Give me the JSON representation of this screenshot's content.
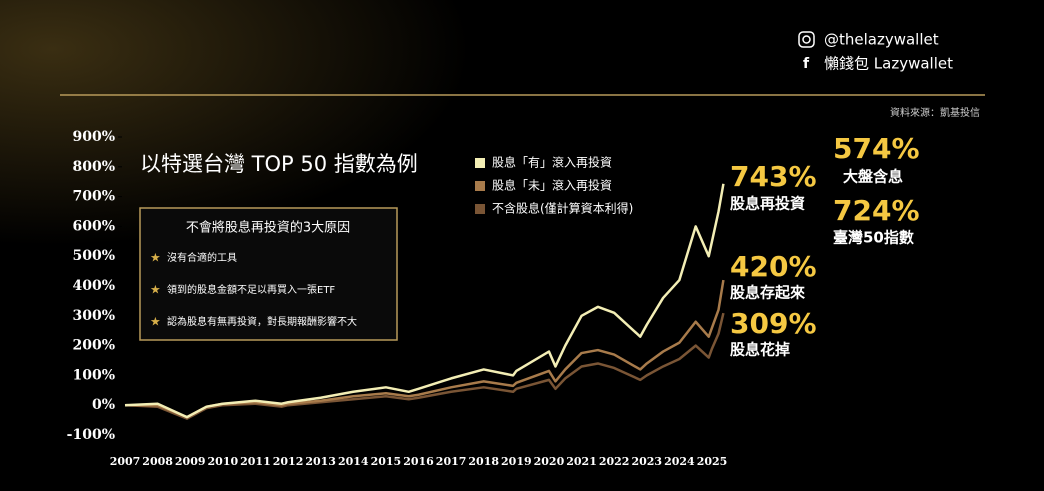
{
  "social": {
    "instagram": "@thelazywallet",
    "facebook": "懶錢包 Lazywallet",
    "source": "資料來源：凱基投信"
  },
  "reasons": {
    "title": "不會將股息再投資的3大原因",
    "items": [
      "沒有合適的工具",
      "領到的股息金額不足以再買入一張ETF",
      "認為股息有無再投資，對長期報酬影響不大"
    ]
  },
  "chart_data": {
    "type": "line",
    "title": "以特選台灣 TOP 50 指數為例",
    "x": [
      2007,
      2008,
      2008.9,
      2009.5,
      2010,
      2011,
      2011.8,
      2012,
      2013,
      2014,
      2015,
      2015.7,
      2016,
      2017,
      2018,
      2018.9,
      2019,
      2020,
      2020.2,
      2020.5,
      2021,
      2021.5,
      2022,
      2022.8,
      2023,
      2023.5,
      2024,
      2024.5,
      2024.9,
      2025,
      2025.2,
      2025.35
    ],
    "series": [
      {
        "name": "股息「有」滾入再投資",
        "color": "#f3eeb5",
        "values": [
          0,
          5,
          -40,
          -5,
          5,
          15,
          5,
          10,
          25,
          45,
          60,
          45,
          55,
          90,
          120,
          100,
          115,
          180,
          130,
          200,
          300,
          330,
          310,
          230,
          270,
          360,
          420,
          600,
          500,
          550,
          650,
          743
        ]
      },
      {
        "name": "股息「未」滾入再投資",
        "color": "#a87b4b",
        "values": [
          0,
          0,
          -40,
          -5,
          5,
          10,
          0,
          5,
          15,
          30,
          40,
          30,
          35,
          60,
          80,
          65,
          75,
          115,
          80,
          120,
          175,
          185,
          170,
          120,
          140,
          180,
          210,
          280,
          230,
          260,
          320,
          420
        ]
      },
      {
        "name": "不含股息(僅計算資本利得)",
        "color": "#7a5535",
        "values": [
          0,
          -5,
          -45,
          -10,
          0,
          5,
          -5,
          0,
          10,
          20,
          30,
          20,
          25,
          45,
          60,
          45,
          55,
          85,
          55,
          90,
          130,
          140,
          125,
          85,
          100,
          130,
          155,
          200,
          160,
          190,
          240,
          309
        ]
      }
    ],
    "xlim": [
      2007,
      2025
    ],
    "xticks": [
      2007,
      2008,
      2009,
      2010,
      2011,
      2012,
      2013,
      2014,
      2015,
      2016,
      2017,
      2018,
      2019,
      2020,
      2021,
      2022,
      2023,
      2024,
      2025
    ],
    "ylim": [
      -100,
      900
    ],
    "yticks": [
      {
        "value": -100,
        "label": "-100%"
      },
      {
        "value": 0,
        "label": "0%"
      },
      {
        "value": 100,
        "label": "100%"
      },
      {
        "value": 200,
        "label": "200%"
      },
      {
        "value": 300,
        "label": "300%"
      },
      {
        "value": 400,
        "label": "400%"
      },
      {
        "value": 500,
        "label": "500%"
      },
      {
        "value": 600,
        "label": "600%"
      },
      {
        "value": 700,
        "label": "700%"
      },
      {
        "value": 800,
        "label": "800%"
      },
      {
        "value": 900,
        "label": "900%"
      }
    ],
    "annotations": [
      "743%",
      "股息再投資",
      "420%",
      "股息存起來",
      "309%",
      "股息花掉",
      "574%",
      "大盤含息",
      "724%",
      "臺灣50指數"
    ]
  }
}
